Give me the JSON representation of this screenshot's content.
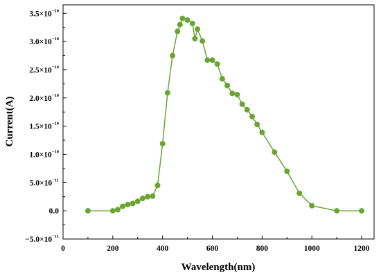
{
  "chart_data": {
    "type": "line",
    "xlabel": "Wavelength(nm)",
    "ylabel": "Current(A)",
    "xlim": [
      0,
      1250
    ],
    "ylim": [
      -5e-11,
      3.65e-10
    ],
    "x_ticks": [
      {
        "value": 0,
        "label": "0"
      },
      {
        "value": 200,
        "label": "200"
      },
      {
        "value": 400,
        "label": "400"
      },
      {
        "value": 600,
        "label": "600"
      },
      {
        "value": 800,
        "label": "800"
      },
      {
        "value": 1000,
        "label": "1000"
      },
      {
        "value": 1200,
        "label": "1200"
      }
    ],
    "y_ticks": [
      {
        "value": -5e-11,
        "mantissa": "−5.0",
        "base": "×10",
        "exp": "−11"
      },
      {
        "value": 0,
        "mantissa": "0.0",
        "base": "",
        "exp": ""
      },
      {
        "value": 5e-11,
        "mantissa": "5.0",
        "base": "×10",
        "exp": "−11"
      },
      {
        "value": 1e-10,
        "mantissa": "1.0",
        "base": "×10",
        "exp": "−10"
      },
      {
        "value": 1.5e-10,
        "mantissa": "1.5",
        "base": "×10",
        "exp": "−10"
      },
      {
        "value": 2e-10,
        "mantissa": "2.0",
        "base": "×10",
        "exp": "−10"
      },
      {
        "value": 2.5e-10,
        "mantissa": "2.5",
        "base": "×10",
        "exp": "−10"
      },
      {
        "value": 3e-10,
        "mantissa": "3.0",
        "base": "×10",
        "exp": "−10"
      },
      {
        "value": 3.5e-10,
        "mantissa": "3.5",
        "base": "×10",
        "exp": "−10"
      }
    ],
    "grid": false,
    "color": "#6aa532",
    "series": [
      {
        "x": [
          100,
          200,
          220,
          240,
          260,
          280,
          300,
          320,
          340,
          360,
          380,
          400,
          420,
          440,
          460,
          470,
          480,
          500,
          520,
          530,
          540,
          560,
          580,
          600,
          620,
          640,
          660,
          680,
          700,
          720,
          740,
          760,
          780,
          800,
          850,
          900,
          950,
          1000,
          1100,
          1200
        ],
        "y": [
          0,
          0,
          2e-12,
          8e-12,
          1.1e-11,
          1.3e-11,
          1.7e-11,
          2.2e-11,
          2.5e-11,
          2.6e-11,
          4.5e-11,
          1.19e-10,
          2.09e-10,
          2.75e-10,
          3.18e-10,
          3.3e-10,
          3.41e-10,
          3.38e-10,
          3.32e-10,
          3.05e-10,
          3.22e-10,
          3.01e-10,
          2.67e-10,
          2.67e-10,
          2.6e-10,
          2.34e-10,
          2.22e-10,
          2.08e-10,
          2.06e-10,
          1.89e-10,
          1.79e-10,
          1.67e-10,
          1.53e-10,
          1.39e-10,
          1.04e-10,
          7e-11,
          3.1e-11,
          9e-12,
          0,
          0
        ]
      }
    ]
  }
}
